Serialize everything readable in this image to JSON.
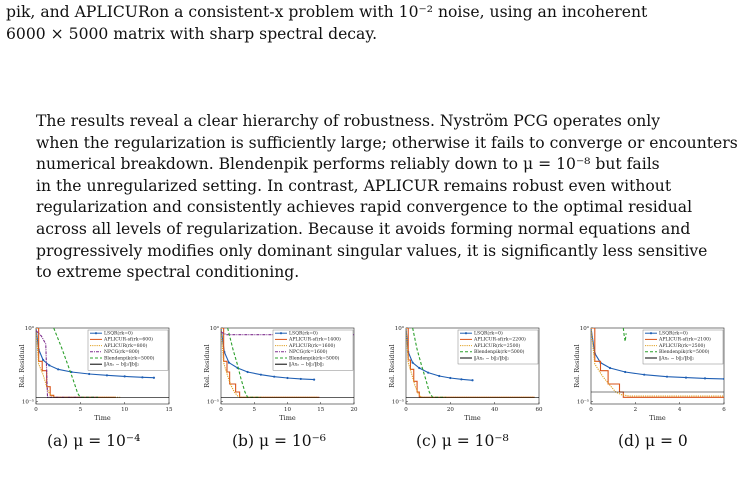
{
  "text": {
    "p1_lines": [
      "pik, and APLICURon a consistent-x problem with 10⁻² noise, using an incoherent",
      "6000 × 5000 matrix with sharp spectral decay."
    ],
    "p2_lines": [
      "The results reveal a clear hierarchy of robustness. Nyström PCG operates only",
      "when the regularization is sufficiently large; otherwise it fails to converge or encounters",
      "numerical breakdown. Blendenpik performs reliably down to μ = 10⁻⁸ but fails",
      "in the unregularized setting. In contrast, APLICUR remains robust even without",
      "regularization and consistently achieves rapid convergence to the optimal residual",
      "across all levels of regularization. Because it avoids forming normal equations and",
      "progressively modifies only dominant singular values, it is significantly less sensitive",
      "to extreme spectral conditioning."
    ]
  },
  "colors": {
    "lsqr": "#1f5fb4",
    "aplicur_sf": "#d95319",
    "aplicur": "#e0a020",
    "npcg": "#7e2f8e",
    "blendenpik": "#2ca02c",
    "optimal": "#000000"
  },
  "chart_data": [
    {
      "type": "line",
      "caption": "(a) μ = 10⁻⁴",
      "xlabel": "Time",
      "ylabel": "Rel. Residual",
      "xlim": [
        0,
        15
      ],
      "xticks": [
        "0",
        "5",
        "10",
        "15"
      ],
      "yticks": [
        "10⁰",
        "10⁻⁵"
      ],
      "ylog": true,
      "legend": [
        "LSQR(rk=0)",
        "APLICUR-sf(rk=600)",
        "APLICUR(rk=800)",
        "NPCG(rk=800)",
        "Blendenpik(rk=5000)",
        "‖Axₓ − b‖₂/‖b‖₂"
      ],
      "series": [
        {
          "name": "LSQR(rk=0)",
          "x": [
            0,
            0.3,
            0.8,
            1.5,
            2.5,
            4,
            6,
            8,
            10,
            12,
            13.3
          ],
          "y": [
            0,
            -1.6,
            -2.4,
            -2.8,
            -3.1,
            -3.3,
            -3.45,
            -3.55,
            -3.63,
            -3.7,
            -3.73
          ]
        },
        {
          "name": "APLICUR-sf(rk=600)",
          "x": [
            0,
            0.3,
            0.7,
            1.2,
            1.6,
            2,
            3,
            5,
            9
          ],
          "y": [
            0,
            -2.5,
            -3.2,
            -4.4,
            -5.05,
            -5.2,
            -5.2,
            -5.2,
            -5.2
          ]
        },
        {
          "name": "APLICUR(rk=800)",
          "x": [
            0,
            0.3,
            0.8,
            1.4,
            1.8,
            2.2,
            3,
            5,
            9.5
          ],
          "y": [
            0,
            -2.7,
            -3.5,
            -4.8,
            -5.1,
            -5.2,
            -5.2,
            -5.2,
            -5.2
          ]
        },
        {
          "name": "NPCG(rk=800)",
          "x": [
            0,
            0.6,
            1.1,
            1.3,
            2,
            3,
            5,
            7
          ],
          "y": [
            -0.2,
            -0.6,
            -1.2,
            -5.2,
            -5.2,
            -5.2,
            -5.2,
            -5.2
          ]
        },
        {
          "name": "Blendenpik(rk=5000)",
          "x": [
            2,
            2.9,
            3.5,
            4.2,
            4.7,
            5,
            6,
            7
          ],
          "y": [
            0,
            -1.5,
            -2.6,
            -3.9,
            -4.9,
            -5.2,
            -5.2,
            -5.2
          ]
        },
        {
          "name": "‖Axₓ − b‖₂/‖b‖₂",
          "x": [
            0,
            15
          ],
          "y": [
            -5.2,
            -5.2
          ]
        }
      ]
    },
    {
      "type": "line",
      "caption": "(b) μ = 10⁻⁶",
      "xlabel": "Time",
      "ylabel": "Rel. Residual",
      "xlim": [
        0,
        20
      ],
      "xticks": [
        "0",
        "5",
        "10",
        "15",
        "20"
      ],
      "yticks": [
        "10⁰",
        "10⁻⁵"
      ],
      "ylog": true,
      "legend": [
        "LSQR(rk=0)",
        "APLICUR-sf(rk=1400)",
        "APLICUR(rk=1600)",
        "NPCG(rk=1600)",
        "Blendenpik(rk=5000)",
        "‖Axₓ − b‖₂/‖b‖₂"
      ],
      "series": [
        {
          "name": "LSQR(rk=0)",
          "x": [
            0,
            0.5,
            1.2,
            2.5,
            4,
            6,
            8,
            10,
            12,
            14
          ],
          "y": [
            0,
            -1.8,
            -2.6,
            -3.0,
            -3.3,
            -3.5,
            -3.65,
            -3.75,
            -3.82,
            -3.87
          ]
        },
        {
          "name": "APLICUR-sf(rk=1400)",
          "x": [
            0,
            0.4,
            0.9,
            1.3,
            1.7,
            2.2,
            2.8,
            3.5,
            14.8
          ],
          "y": [
            0,
            -2.5,
            -3.3,
            -4.2,
            -4.2,
            -4.8,
            -5.2,
            -5.2,
            -5.2
          ]
        },
        {
          "name": "APLICUR(rk=1600)",
          "x": [
            0,
            0.4,
            1,
            1.5,
            2,
            2.5,
            3,
            14.5
          ],
          "y": [
            0,
            -2.6,
            -3.6,
            -4.3,
            -4.8,
            -5.1,
            -5.2,
            -5.2
          ]
        },
        {
          "name": "NPCG(rk=1600)",
          "x": [
            0,
            0.8,
            3,
            8,
            14,
            20
          ],
          "y": [
            -0.3,
            -0.5,
            -0.5,
            -0.5,
            -0.5,
            -0.5
          ]
        },
        {
          "name": "Blendenpik(rk=5000)",
          "x": [
            1,
            1.8,
            2.5,
            3,
            3.6,
            4,
            5,
            6
          ],
          "y": [
            0,
            -1.6,
            -2.8,
            -3.8,
            -4.8,
            -5.2,
            -5.2,
            -5.2
          ]
        },
        {
          "name": "‖Axₓ − b‖₂/‖b‖₂",
          "x": [
            0,
            20
          ],
          "y": [
            -5.2,
            -5.2
          ]
        }
      ]
    },
    {
      "type": "line",
      "caption": "(c) μ = 10⁻⁸",
      "xlabel": "Time",
      "ylabel": "Rel. Residual",
      "xlim": [
        0,
        60
      ],
      "xticks": [
        "0",
        "20",
        "40",
        "60"
      ],
      "yticks": [
        "10⁰",
        "10⁻⁵"
      ],
      "ylog": true,
      "legend": [
        "LSQR(rk=0)",
        "APLICUR-sf(rk=2200)",
        "APLICUR(rk=2500)",
        "Blendenpik(rk=5000)",
        "‖Axₓ − b‖₂/‖b‖₂"
      ],
      "series": [
        {
          "name": "LSQR(rk=0)",
          "x": [
            0,
            1,
            3,
            6,
            10,
            15,
            20,
            25,
            30
          ],
          "y": [
            0,
            -1.8,
            -2.6,
            -3.0,
            -3.35,
            -3.6,
            -3.75,
            -3.85,
            -3.92
          ]
        },
        {
          "name": "APLICUR-sf(rk=2200)",
          "x": [
            0,
            1,
            2,
            3.5,
            5,
            6,
            8,
            58
          ],
          "y": [
            0,
            -2.4,
            -3.1,
            -4.0,
            -4.8,
            -5.2,
            -5.2,
            -5.2
          ]
        },
        {
          "name": "APLICUR(rk=2500)",
          "x": [
            0,
            1,
            2.5,
            4,
            5.5,
            7,
            9,
            58
          ],
          "y": [
            0,
            -2.6,
            -3.4,
            -4.3,
            -4.9,
            -5.2,
            -5.2,
            -5.2
          ]
        },
        {
          "name": "Blendenpik(rk=5000)",
          "x": [
            3,
            5,
            7,
            9,
            10.5,
            12,
            14,
            18
          ],
          "y": [
            0,
            -1.6,
            -2.8,
            -3.9,
            -4.8,
            -5.2,
            -5.2,
            -5.2
          ]
        },
        {
          "name": "‖Axₓ − b‖₂/‖b‖₂",
          "x": [
            0,
            60
          ],
          "y": [
            -5.2,
            -5.2
          ]
        }
      ]
    },
    {
      "type": "line",
      "caption": "(d) μ = 0",
      "xlabel": "Time",
      "ylabel": "Rel. Residual",
      "xlim": [
        0,
        7
      ],
      "xticks": [
        "0",
        "2",
        "4",
        "6"
      ],
      "yticks": [
        "10⁰",
        "10⁻⁵"
      ],
      "ylog": true,
      "legend": [
        "LSQR(rk=0)",
        "APLICUR-sf(rk=2100)",
        "APLICUR(rk=2500)",
        "Blendenpik(rk=5000)",
        "‖Axₓ − b‖₂/‖b‖₂"
      ],
      "series": [
        {
          "name": "LSQR(rk=0)",
          "x": [
            0,
            0.2,
            0.5,
            1,
            1.8,
            2.8,
            4,
            5,
            6,
            7
          ],
          "y": [
            0,
            -1.9,
            -2.6,
            -3.0,
            -3.3,
            -3.5,
            -3.65,
            -3.72,
            -3.78,
            -3.82
          ]
        },
        {
          "name": "APLICUR-sf(rk=2100)",
          "x": [
            0,
            0.2,
            0.5,
            0.9,
            1.3,
            1.5,
            1.6,
            1.7,
            7
          ],
          "y": [
            0,
            -2.5,
            -3.2,
            -4.2,
            -4.2,
            -4.8,
            -4.8,
            -5.2,
            -5.2
          ]
        },
        {
          "name": "APLICUR(rk=2500)",
          "x": [
            0,
            0.2,
            0.6,
            1,
            1.3,
            1.6,
            2,
            7
          ],
          "y": [
            0,
            -2.7,
            -3.6,
            -4.3,
            -4.8,
            -5.0,
            -5.1,
            -5.1
          ]
        },
        {
          "name": "Blendenpik(rk=5000)",
          "x": [
            1.7,
            1.75,
            1.8,
            1.85
          ],
          "y": [
            0,
            -0.6,
            -1.0,
            -0.4
          ]
        },
        {
          "name": "‖Axₓ − b‖₂/‖b‖₂",
          "x": [
            0,
            7
          ],
          "y": [
            -4.8,
            -4.8
          ]
        }
      ]
    }
  ]
}
